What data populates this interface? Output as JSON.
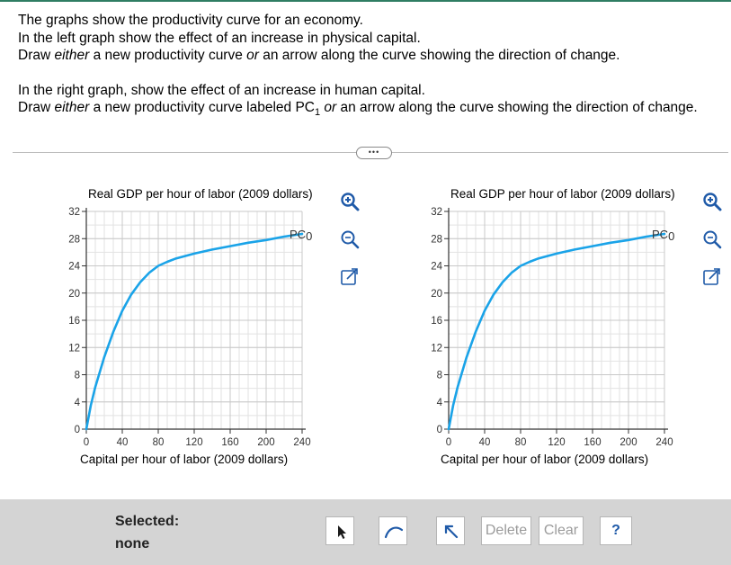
{
  "instructions": {
    "line1": "The graphs show the productivity curve for an economy.",
    "line2": "In the left graph show the effect of an increase in physical capital.",
    "line3_pre": "Draw ",
    "line3_em1": "either",
    "line3_mid": " a new productivity curve ",
    "line3_em2": "or",
    "line3_post": " an arrow along the curve showing the direction of change.",
    "line4": "In the right graph, show the effect of an increase in human capital.",
    "line5_pre": "Draw ",
    "line5_em1": "either",
    "line5_mid": " a new productivity curve labeled PC",
    "line5_sub": "1",
    "line5_em2": " or",
    "line5_post": " an arrow along the curve showing the direction of change."
  },
  "more_button": "•••",
  "graphs": {
    "left": {
      "y_title": "Real GDP per hour of labor (2009 dollars)",
      "x_title": "Capital per hour of labor (2009 dollars)",
      "curve_label": "PC",
      "curve_sub": "0"
    },
    "right": {
      "y_title": "Real GDP per hour of labor (2009 dollars)",
      "x_title": "Capital per hour of labor (2009 dollars)",
      "curve_label": "PC",
      "curve_sub": "0"
    }
  },
  "chart_data": [
    {
      "type": "line",
      "ylabel": "Real GDP per hour of labor (2009 dollars)",
      "xlabel": "Capital per hour of labor (2009 dollars)",
      "xlim": [
        0,
        240
      ],
      "ylim": [
        0,
        32
      ],
      "x_ticks": [
        0,
        40,
        80,
        120,
        160,
        200,
        240
      ],
      "y_ticks": [
        0,
        4,
        8,
        12,
        16,
        20,
        24,
        28,
        32
      ],
      "grid": true,
      "series": [
        {
          "name": "PC0",
          "color": "#1aa3e8",
          "x": [
            0,
            5,
            10,
            20,
            30,
            40,
            50,
            60,
            70,
            80,
            90,
            100,
            120,
            140,
            160,
            180,
            200,
            220,
            240
          ],
          "y": [
            0,
            3.5,
            6.2,
            10.6,
            14.3,
            17.4,
            19.8,
            21.6,
            23.0,
            24.0,
            24.6,
            25.1,
            25.8,
            26.4,
            26.9,
            27.4,
            27.8,
            28.3,
            28.7
          ]
        }
      ]
    },
    {
      "type": "line",
      "ylabel": "Real GDP per hour of labor (2009 dollars)",
      "xlabel": "Capital per hour of labor (2009 dollars)",
      "xlim": [
        0,
        240
      ],
      "ylim": [
        0,
        32
      ],
      "x_ticks": [
        0,
        40,
        80,
        120,
        160,
        200,
        240
      ],
      "y_ticks": [
        0,
        4,
        8,
        12,
        16,
        20,
        24,
        28,
        32
      ],
      "grid": true,
      "series": [
        {
          "name": "PC0",
          "color": "#1aa3e8",
          "x": [
            0,
            5,
            10,
            20,
            30,
            40,
            50,
            60,
            70,
            80,
            90,
            100,
            120,
            140,
            160,
            180,
            200,
            220,
            240
          ],
          "y": [
            0,
            3.5,
            6.2,
            10.6,
            14.3,
            17.4,
            19.8,
            21.6,
            23.0,
            24.0,
            24.6,
            25.1,
            25.8,
            26.4,
            26.9,
            27.4,
            27.8,
            28.3,
            28.7
          ]
        }
      ]
    }
  ],
  "toolbar": {
    "selected_label": "Selected:",
    "selected_value": "none",
    "delete_label": "Delete",
    "clear_label": "Clear",
    "help_label": "?"
  },
  "icons": {
    "zoom_in": "zoom-in-icon",
    "zoom_out": "zoom-out-icon",
    "expand": "expand-icon",
    "pointer": "pointer-tool-icon",
    "curve": "curve-tool-icon",
    "arrow": "arrow-tool-icon"
  },
  "colors": {
    "curve": "#1aa3e8",
    "icon_blue": "#1f5aa8",
    "top_rule": "#2f7d63",
    "toolbar_bg": "#d4d4d4"
  }
}
